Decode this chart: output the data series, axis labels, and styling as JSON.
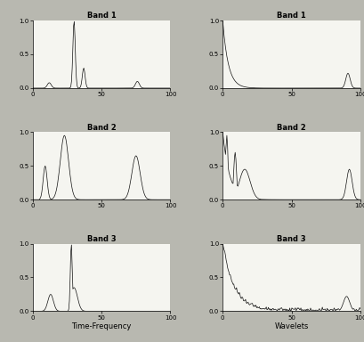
{
  "title_left": "Time-Frequency",
  "title_right": "Wavelets",
  "band_titles": [
    "Band 1",
    "Band 2",
    "Band 3"
  ],
  "xlim": [
    0,
    100
  ],
  "ylim": [
    0,
    1
  ],
  "yticks": [
    0,
    0.5,
    1
  ],
  "xticks": [
    0,
    50,
    100
  ],
  "tick_fontsize": 5,
  "label_fontsize": 6,
  "title_fontsize": 6,
  "line_color": "#111111",
  "line_width": 0.5,
  "bg_color": "#f5f5f0",
  "fig_bg": "#b8b8b0"
}
